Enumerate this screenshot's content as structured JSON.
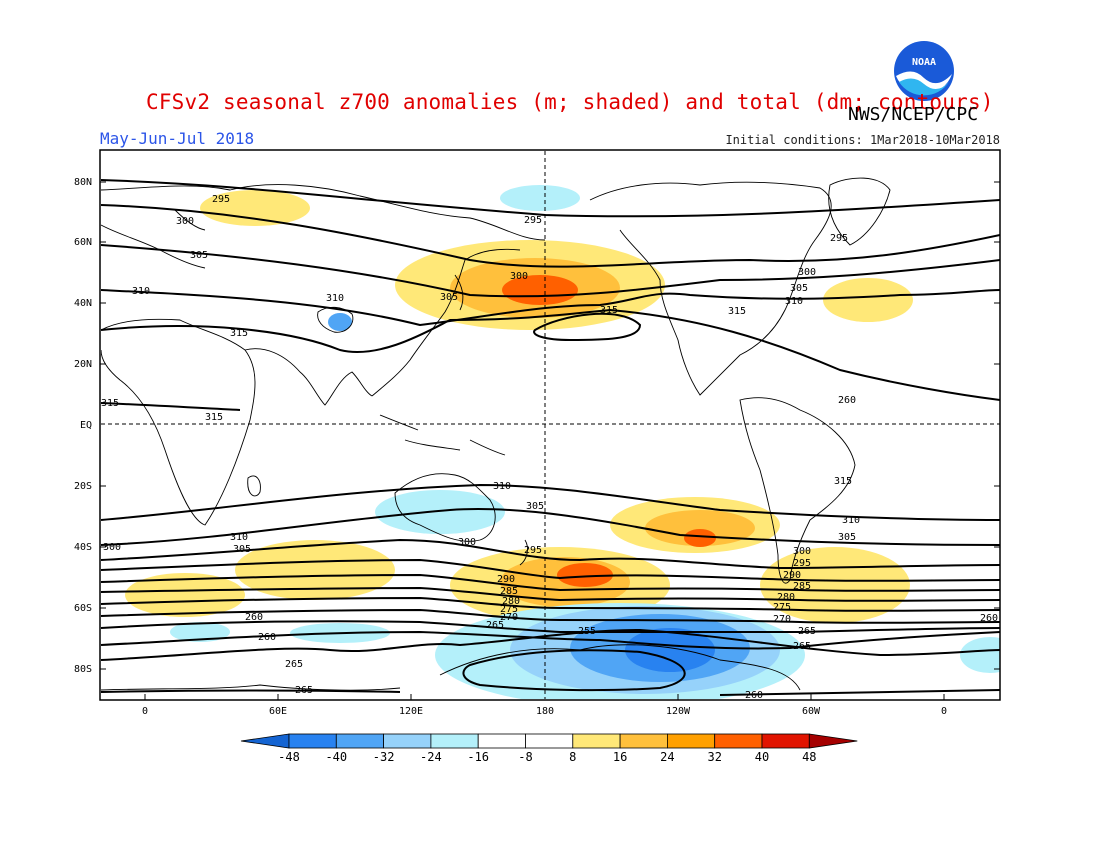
{
  "header": {
    "title": "CFSv2 seasonal z700 anomalies (m; shaded) and total (dm; contours)",
    "credit": "NWS/NCEP/CPC",
    "period": "May-Jun-Jul 2018",
    "init_conditions": "Initial conditions: 1Mar2018-10Mar2018",
    "logo_text": "NOAA"
  },
  "axes": {
    "lat_labels": [
      "80N",
      "60N",
      "40N",
      "20N",
      "EQ",
      "20S",
      "40S",
      "60S",
      "80S"
    ],
    "lon_labels": [
      "0",
      "60E",
      "120E",
      "180",
      "120W",
      "60W",
      "0"
    ]
  },
  "colorbar": {
    "ticks": [
      "-48",
      "-40",
      "-32",
      "-24",
      "-16",
      "-8",
      "8",
      "16",
      "24",
      "32",
      "40",
      "48"
    ],
    "colors": [
      "#1464d2",
      "#2882f0",
      "#50a5f5",
      "#96d2fa",
      "#b4f0fa",
      "#ffffff",
      "#ffffff",
      "#ffe878",
      "#ffc03c",
      "#ffa000",
      "#ff6000",
      "#e11400",
      "#a50000"
    ]
  },
  "contour_labels": {
    "north": [
      "295",
      "300",
      "305",
      "310",
      "315",
      "295",
      "300",
      "305",
      "310",
      "315",
      "300",
      "305",
      "310",
      "315",
      "295"
    ],
    "south": [
      "315",
      "315",
      "310",
      "305",
      "300",
      "310",
      "305",
      "300",
      "295",
      "290",
      "285",
      "280",
      "275",
      "270",
      "265",
      "260",
      "255",
      "260",
      "265",
      "260",
      "265",
      "315",
      "310",
      "305",
      "300",
      "295",
      "290",
      "285",
      "280",
      "275",
      "270",
      "265",
      "260",
      "265",
      "260"
    ]
  }
}
